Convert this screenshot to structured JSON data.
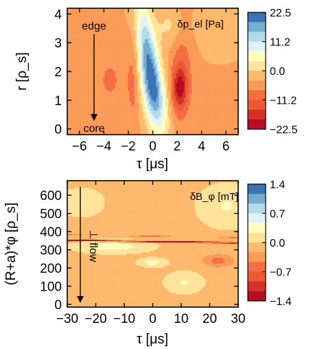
{
  "chart_data": [
    {
      "type": "heatmap",
      "title": "",
      "quantity_label": "δp_el [Pa]",
      "xlabel": "τ [μs]",
      "ylabel": "r [ρ_s]",
      "xlim": [
        -7,
        7
      ],
      "ylim": [
        -0.2,
        4.2
      ],
      "x_ticks": [
        -6,
        -4,
        -2,
        0,
        2,
        4,
        6
      ],
      "x_tick_labels": [
        "−6",
        "−4",
        "−2",
        "0",
        "2",
        "4",
        "6"
      ],
      "y_ticks": [
        0,
        1,
        2,
        3,
        4
      ],
      "y_tick_labels": [
        "0",
        "1",
        "2",
        "3",
        "4"
      ],
      "colorbar": {
        "range": [
          -22.5,
          22.5
        ],
        "ticks": [
          22.5,
          11.2,
          0.0,
          -11.2,
          -22.5
        ],
        "tick_labels": [
          "22.5",
          "11.2",
          "0.0",
          "−11.2",
          "−22.5"
        ],
        "colormap": "RdYlBu (red = negative, blue = positive)"
      },
      "background_value": -4,
      "features": [
        {
          "kind": "positive-lobe",
          "x": 0.0,
          "y": 1.4,
          "sx": 0.65,
          "sy": 1.1,
          "tilt": -0.33,
          "amp": 24.0
        },
        {
          "kind": "positive-ridge",
          "x": -0.6,
          "y": 3.3,
          "sx": 0.55,
          "sy": 1.0,
          "tilt": -0.3,
          "amp": 12.0
        },
        {
          "kind": "negative-spot",
          "x": 2.2,
          "y": 1.4,
          "sx": 0.45,
          "sy": 0.55,
          "tilt": 0.0,
          "amp": -14.0
        },
        {
          "kind": "negative-ridge",
          "x": 2.4,
          "y": 2.3,
          "sx": 0.6,
          "sy": 1.4,
          "tilt": 0.0,
          "amp": -5.0
        },
        {
          "kind": "negative-band",
          "x": -1.6,
          "y": 1.8,
          "sx": 0.35,
          "sy": 1.2,
          "tilt": 0.0,
          "amp": -5.0
        },
        {
          "kind": "positive-patch",
          "x": 1.5,
          "y": 3.6,
          "sx": 0.9,
          "sy": 0.5,
          "tilt": 0.0,
          "amp": 5.0
        },
        {
          "kind": "negative-patch",
          "x": -3.5,
          "y": 1.7,
          "sx": 1.0,
          "sy": 0.8,
          "tilt": 0.0,
          "amp": -4.0
        },
        {
          "kind": "neutral-patch",
          "x": 5.5,
          "y": 3.6,
          "sx": 1.3,
          "sy": 0.6,
          "tilt": 0.0,
          "amp": 3.5
        }
      ],
      "annotations": {
        "edge": "edge",
        "core": "core"
      }
    },
    {
      "type": "heatmap",
      "title": "",
      "quantity_label": "δB_φ [mT]",
      "xlabel": "τ [μs]",
      "ylabel": "(R+a)*φ [ρ_s]",
      "xlim": [
        -30,
        30
      ],
      "ylim": [
        -15,
        680
      ],
      "x_ticks": [
        -30,
        -20,
        -10,
        0,
        10,
        20,
        30
      ],
      "x_tick_labels": [
        "−30",
        "−20",
        "−10",
        "0",
        "10",
        "20",
        "30"
      ],
      "y_ticks": [
        0,
        100,
        200,
        300,
        400,
        500,
        600
      ],
      "y_tick_labels": [
        "0",
        "100",
        "200",
        "300",
        "400",
        "500",
        "600"
      ],
      "colorbar": {
        "range": [
          -1.4,
          1.4
        ],
        "ticks": [
          1.4,
          0.7,
          0.0,
          -0.7,
          -1.4
        ],
        "tick_labels": [
          "1.4",
          "0.7",
          "0.0",
          "−0.7",
          "−1.4"
        ],
        "colormap": "RdYlBu (red = negative, blue = positive)"
      },
      "background_value": -0.05,
      "features": [
        {
          "kind": "negative-band",
          "x": 2.0,
          "y": 345,
          "sx": 11.0,
          "sy": 38,
          "tilt": -4.2,
          "amp": -1.55
        },
        {
          "kind": "negative-core",
          "x": -1.0,
          "y": 375,
          "sx": 5.0,
          "sy": 28,
          "tilt": -4.0,
          "amp": -0.55
        },
        {
          "kind": "negative-tail",
          "x": 23.0,
          "y": 240,
          "sx": 4.0,
          "sy": 25,
          "tilt": 0.0,
          "amp": -0.5
        },
        {
          "kind": "positive-band",
          "x": -14.0,
          "y": 318,
          "sx": 8.0,
          "sy": 22,
          "tilt": 0.0,
          "amp": 0.42
        },
        {
          "kind": "positive-spot",
          "x": 0.0,
          "y": 230,
          "sx": 3.0,
          "sy": 15,
          "tilt": 0.0,
          "amp": 0.38
        },
        {
          "kind": "positive-spot",
          "x": 11.0,
          "y": 120,
          "sx": 4.0,
          "sy": 35,
          "tilt": 0.0,
          "amp": 0.3
        },
        {
          "kind": "positive-patch",
          "x": 26.0,
          "y": 540,
          "sx": 6.0,
          "sy": 70,
          "tilt": 0.0,
          "amp": 0.3
        },
        {
          "kind": "positive-patch",
          "x": -25.0,
          "y": 560,
          "sx": 5.0,
          "sy": 50,
          "tilt": 0.0,
          "amp": 0.2
        }
      ],
      "annotations": {
        "flow": "⊥ flow"
      }
    }
  ]
}
